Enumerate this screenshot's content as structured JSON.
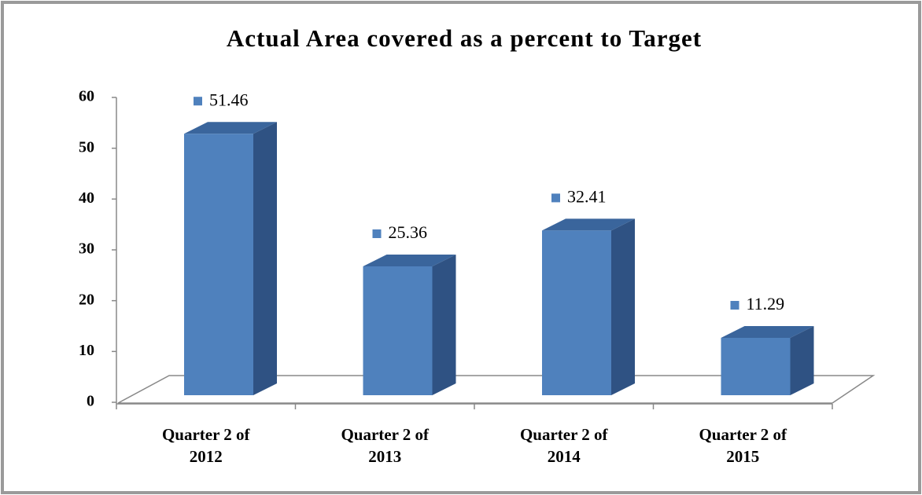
{
  "chart_data": {
    "type": "bar3d",
    "title": "Actual  Area covered as a percent to Target",
    "categories": [
      "Quarter 2 of 2012",
      "Quarter 2 of 2013",
      "Quarter 2 of 2014",
      "Quarter 2 of 2015"
    ],
    "values": [
      51.46,
      25.36,
      32.41,
      11.29
    ],
    "color": "#4f81bd",
    "ylim": [
      0,
      60
    ],
    "yticks": [
      0,
      10,
      20,
      30,
      40,
      50,
      60
    ]
  }
}
